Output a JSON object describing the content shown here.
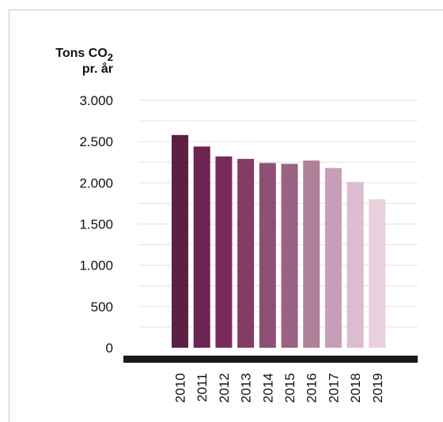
{
  "chart_data": {
    "type": "bar",
    "title": "",
    "ylabel": {
      "line1_prefix": "Tons CO",
      "line1_subscript": "2",
      "line2": "pr. år"
    },
    "xlabel": "",
    "categories": [
      "2010",
      "2011",
      "2012",
      "2013",
      "2014",
      "2015",
      "2016",
      "2017",
      "2018",
      "2019"
    ],
    "values": [
      2580,
      2440,
      2320,
      2290,
      2240,
      2230,
      2270,
      2180,
      2010,
      1800
    ],
    "ylim": [
      0,
      3000
    ],
    "yticks": [
      0,
      500,
      1000,
      1500,
      2000,
      2500,
      3000
    ],
    "ytick_labels": [
      "0",
      "500",
      "1.000",
      "1.500",
      "2.000",
      "2.500",
      "3.000"
    ],
    "grid": "horizontal-minor",
    "colors": [
      "#5e1f45",
      "#6e2452",
      "#7a2a5a",
      "#843c67",
      "#8d4f74",
      "#9a6283",
      "#ae8199",
      "#c79eb8",
      "#dbbcd0",
      "#eacfdd"
    ],
    "gridline_color": "#ecdde4",
    "baseline_color": "#1a1a1a"
  }
}
